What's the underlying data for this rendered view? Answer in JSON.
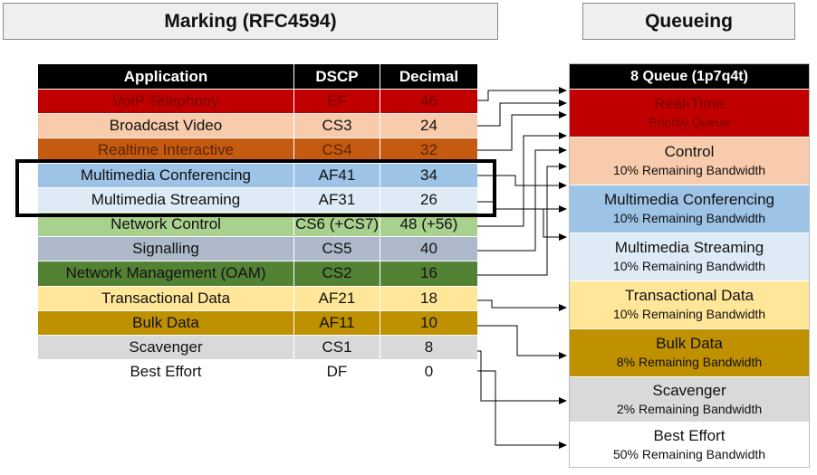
{
  "headers": {
    "marking": "Marking (RFC4594)",
    "queueing": "Queueing"
  },
  "marking_table": {
    "columns": [
      "Application",
      "DSCP",
      "Decimal"
    ],
    "rows": [
      {
        "application": "VoIP Telephony",
        "dscp": "EF",
        "decimal": "46",
        "bg": "#c00000",
        "fg": "#7a0000"
      },
      {
        "application": "Broadcast Video",
        "dscp": "CS3",
        "decimal": "24",
        "bg": "#f8cbad",
        "fg": "#111111"
      },
      {
        "application": "Realtime Interactive",
        "dscp": "CS4",
        "decimal": "32",
        "bg": "#c55a11",
        "fg": "#5a2500"
      },
      {
        "application": "Multimedia Conferencing",
        "dscp": "AF41",
        "decimal": "34",
        "bg": "#9dc3e6",
        "fg": "#111111"
      },
      {
        "application": "Multimedia Streaming",
        "dscp": "AF31",
        "decimal": "26",
        "bg": "#deebf7",
        "fg": "#111111"
      },
      {
        "application": "Network Control",
        "dscp": "CS6 (+CS7)",
        "decimal": "48 (+56)",
        "bg": "#a9d18e",
        "fg": "#111111"
      },
      {
        "application": "Signalling",
        "dscp": "CS5",
        "decimal": "40",
        "bg": "#adb9ca",
        "fg": "#111111"
      },
      {
        "application": "Network Management (OAM)",
        "dscp": "CS2",
        "decimal": "16",
        "bg": "#548235",
        "fg": "#111111"
      },
      {
        "application": "Transactional Data",
        "dscp": "AF21",
        "decimal": "18",
        "bg": "#ffe699",
        "fg": "#111111"
      },
      {
        "application": "Bulk Data",
        "dscp": "AF11",
        "decimal": "10",
        "bg": "#bf9000",
        "fg": "#111111"
      },
      {
        "application": "Scavenger",
        "dscp": "CS1",
        "decimal": "8",
        "bg": "#d9d9d9",
        "fg": "#111111"
      },
      {
        "application": "Best Effort",
        "dscp": "DF",
        "decimal": "0",
        "bg": "#ffffff",
        "fg": "#111111"
      }
    ]
  },
  "queues": {
    "title": "8 Queue (1p7q4t)",
    "items": [
      {
        "name": "Real-Time",
        "detail": "Priority Queue",
        "bg": "#c00000",
        "fg": "#7a0000"
      },
      {
        "name": "Control",
        "detail": "10% Remaining Bandwidth",
        "bg": "#f8cbad",
        "fg": "#111111"
      },
      {
        "name": "Multimedia Conferencing",
        "detail": "10% Remaining Bandwidth",
        "bg": "#9dc3e6",
        "fg": "#111111"
      },
      {
        "name": "Multimedia Streaming",
        "detail": "10% Remaining Bandwidth",
        "bg": "#deebf7",
        "fg": "#111111"
      },
      {
        "name": "Transactional Data",
        "detail": "10% Remaining Bandwidth",
        "bg": "#ffe699",
        "fg": "#111111"
      },
      {
        "name": "Bulk Data",
        "detail": "8% Remaining Bandwidth",
        "bg": "#bf9000",
        "fg": "#111111"
      },
      {
        "name": "Scavenger",
        "detail": "2% Remaining Bandwidth",
        "bg": "#d9d9d9",
        "fg": "#111111"
      },
      {
        "name": "Best Effort",
        "detail": "50% Remaining Bandwidth",
        "bg": "#ffffff",
        "fg": "#111111"
      }
    ]
  },
  "mappings": [
    {
      "from": "VoIP Telephony",
      "to": "Real-Time"
    },
    {
      "from": "Broadcast Video",
      "to": "Real-Time"
    },
    {
      "from": "Realtime Interactive",
      "to": "Real-Time"
    },
    {
      "from": "Multimedia Conferencing",
      "to": "Multimedia Conferencing"
    },
    {
      "from": "Multimedia Streaming",
      "to": "Multimedia Streaming"
    },
    {
      "from": "Network Control",
      "to": "Control"
    },
    {
      "from": "Signalling",
      "to": "Control"
    },
    {
      "from": "Network Management (OAM)",
      "to": "Control"
    },
    {
      "from": "Transactional Data",
      "to": "Transactional Data"
    },
    {
      "from": "Bulk Data",
      "to": "Bulk Data"
    },
    {
      "from": "Scavenger",
      "to": "Scavenger"
    },
    {
      "from": "Best Effort",
      "to": "Best Effort"
    }
  ]
}
